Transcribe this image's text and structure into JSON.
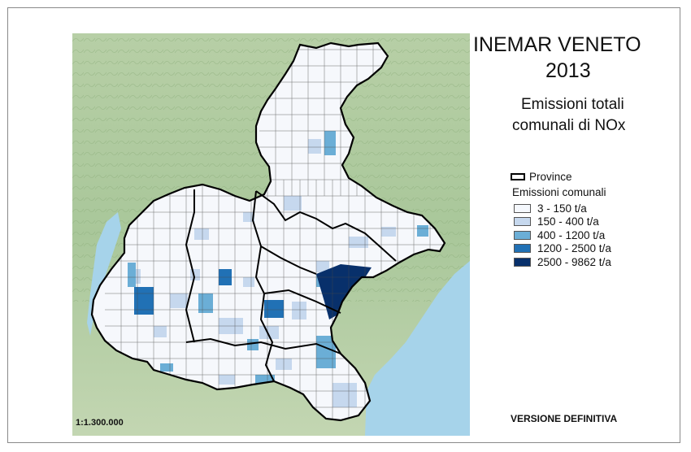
{
  "title": "INEMAR VENETO",
  "year": "2013",
  "subtitle_line1": "Emissioni totali",
  "subtitle_line2": "comunali di NOx",
  "legend": {
    "province_label": "Province",
    "emissions_title": "Emissioni comunali",
    "classes": [
      {
        "label": "3 - 150  t/a",
        "color": "#f5f8fd"
      },
      {
        "label": "150 - 400  t/a",
        "color": "#c6d8ee"
      },
      {
        "label": "400 - 1200  t/a",
        "color": "#6baed6"
      },
      {
        "label": "1200 - 2500  t/a",
        "color": "#2171b5"
      },
      {
        "label": "2500 - 9862  t/a",
        "color": "#08306b"
      }
    ]
  },
  "scale": "1:1.300.000",
  "version": "VERSIONE DEFINITIVA",
  "colors": {
    "sea": "#a6d3ea",
    "terrain": "#a9c89a",
    "province_border": "#000000"
  }
}
